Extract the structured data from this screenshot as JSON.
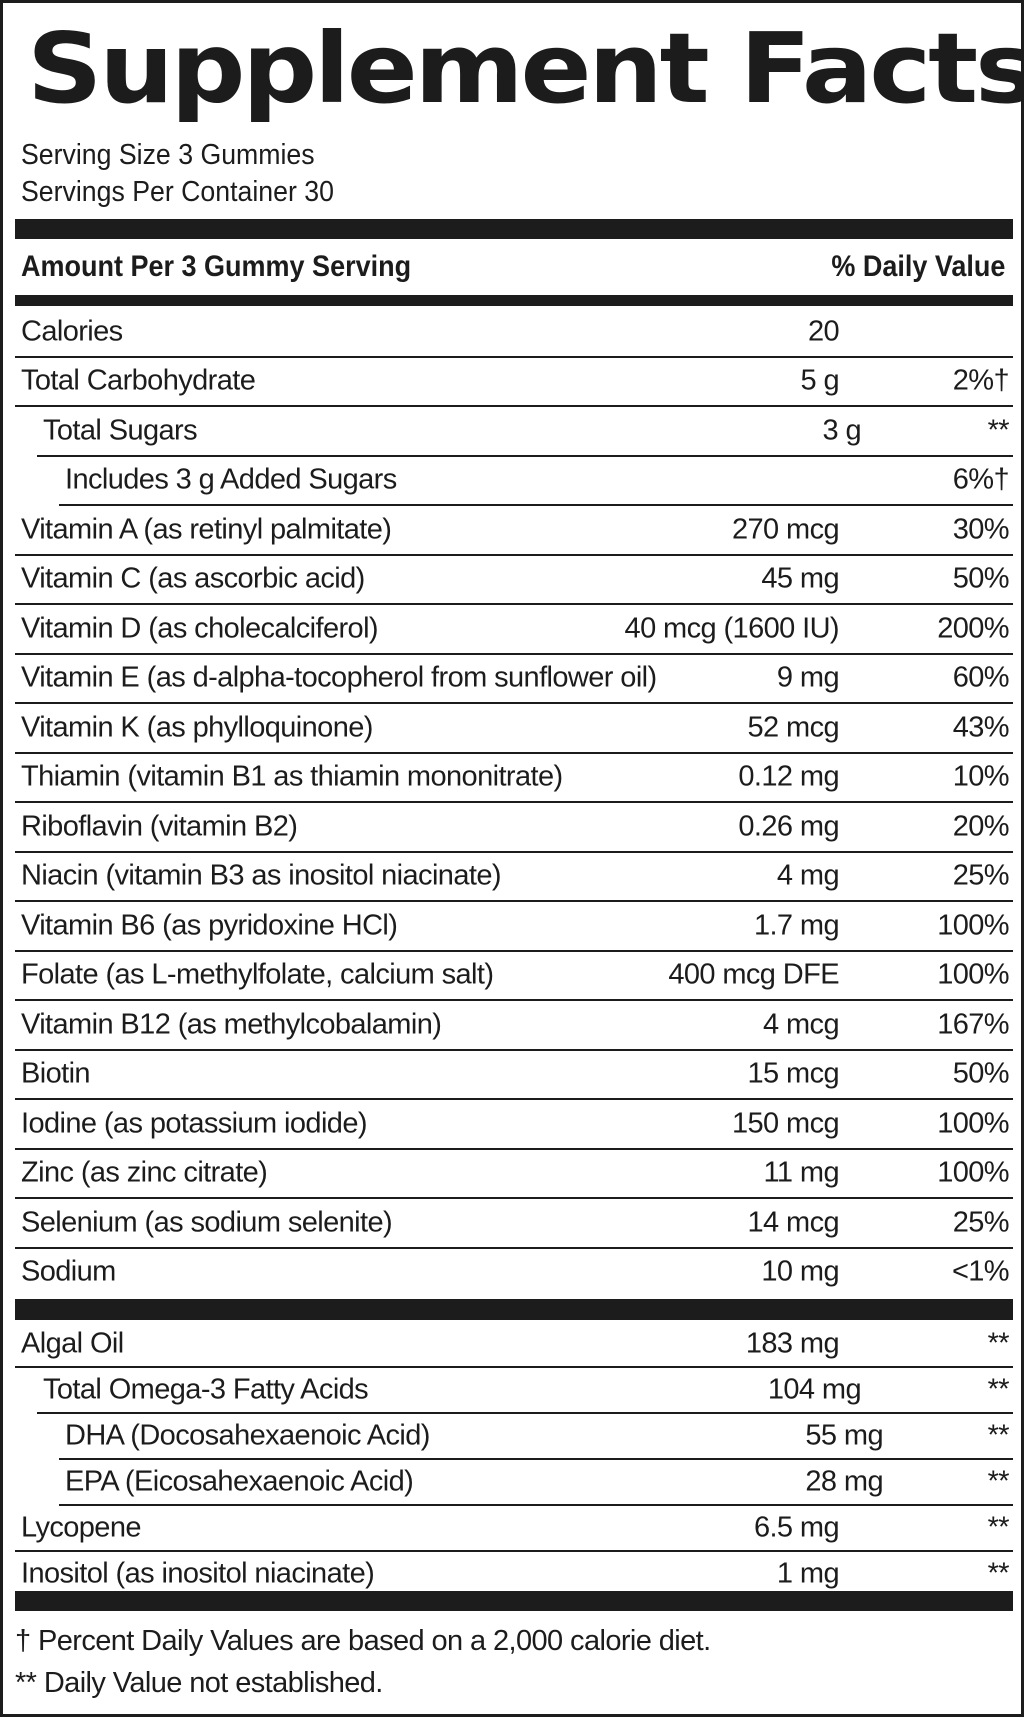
{
  "title": "Supplement Facts",
  "serving_size": "Serving Size 3 Gummies",
  "servings_per_container": "Servings Per Container 30",
  "header": {
    "amount": "Amount Per 3 Gummy Serving",
    "dv": "% Daily Value"
  },
  "nutrients": [
    {
      "name": "Calories",
      "amount": "20",
      "dv": "",
      "indent": 0
    },
    {
      "name": "Total Carbohydrate",
      "amount": "5 g",
      "dv": "2%†",
      "indent": 0
    },
    {
      "name": "Total Sugars",
      "amount": "3 g",
      "dv": "**",
      "indent": 1
    },
    {
      "name": "Includes 3 g Added Sugars",
      "amount": "",
      "dv": "6%†",
      "indent": 2
    },
    {
      "name": "Vitamin A (as retinyl palmitate)",
      "amount": "270 mcg",
      "dv": "30%",
      "indent": 0
    },
    {
      "name": "Vitamin C (as ascorbic acid)",
      "amount": "45 mg",
      "dv": "50%",
      "indent": 0
    },
    {
      "name": "Vitamin D (as cholecalciferol)",
      "amount": "40 mcg (1600 IU)",
      "dv": "200%",
      "indent": 0
    },
    {
      "name": "Vitamin E (as d-alpha-tocopherol from sunflower oil)",
      "amount": "9 mg",
      "dv": "60%",
      "indent": 0
    },
    {
      "name": "Vitamin K (as phylloquinone)",
      "amount": "52 mcg",
      "dv": "43%",
      "indent": 0
    },
    {
      "name": "Thiamin (vitamin B1 as thiamin mononitrate)",
      "amount": "0.12 mg",
      "dv": "10%",
      "indent": 0
    },
    {
      "name": "Riboflavin (vitamin B2)",
      "amount": "0.26 mg",
      "dv": "20%",
      "indent": 0
    },
    {
      "name": "Niacin (vitamin B3 as inositol niacinate)",
      "amount": "4 mg",
      "dv": "25%",
      "indent": 0
    },
    {
      "name": "Vitamin B6 (as pyridoxine HCl)",
      "amount": "1.7 mg",
      "dv": "100%",
      "indent": 0
    },
    {
      "name": "Folate (as L-methylfolate, calcium salt)",
      "amount": "400 mcg DFE",
      "dv": "100%",
      "indent": 0
    },
    {
      "name": "Vitamin B12 (as methylcobalamin)",
      "amount": "4 mcg",
      "dv": "167%",
      "indent": 0
    },
    {
      "name": "Biotin",
      "amount": "15 mcg",
      "dv": "50%",
      "indent": 0
    },
    {
      "name": "Iodine (as potassium iodide)",
      "amount": "150 mcg",
      "dv": "100%",
      "indent": 0
    },
    {
      "name": "Zinc (as zinc citrate)",
      "amount": "11 mg",
      "dv": "100%",
      "indent": 0
    },
    {
      "name": "Selenium (as sodium selenite)",
      "amount": "14 mcg",
      "dv": "25%",
      "indent": 0
    },
    {
      "name": "Sodium",
      "amount": "10 mg",
      "dv": "<1%",
      "indent": 0
    }
  ],
  "other_ingredients": [
    {
      "name": "Algal Oil",
      "amount": "183 mg",
      "dv": "**",
      "indent": 0
    },
    {
      "name": "Total Omega-3 Fatty Acids",
      "amount": "104 mg",
      "dv": "**",
      "indent": 1
    },
    {
      "name": "DHA (Docosahexaenoic Acid)",
      "amount": "55 mg",
      "dv": "**",
      "indent": 2
    },
    {
      "name": "EPA (Eicosahexaenoic Acid)",
      "amount": "28 mg",
      "dv": "**",
      "indent": 2
    },
    {
      "name": "Lycopene",
      "amount": "6.5 mg",
      "dv": "**",
      "indent": 0
    },
    {
      "name": "Inositol (as inositol niacinate)",
      "amount": "1 mg",
      "dv": "**",
      "indent": 0
    }
  ],
  "footnotes": [
    "† Percent Daily Values are based on a 2,000 calorie diet.",
    "** Daily Value not established."
  ]
}
